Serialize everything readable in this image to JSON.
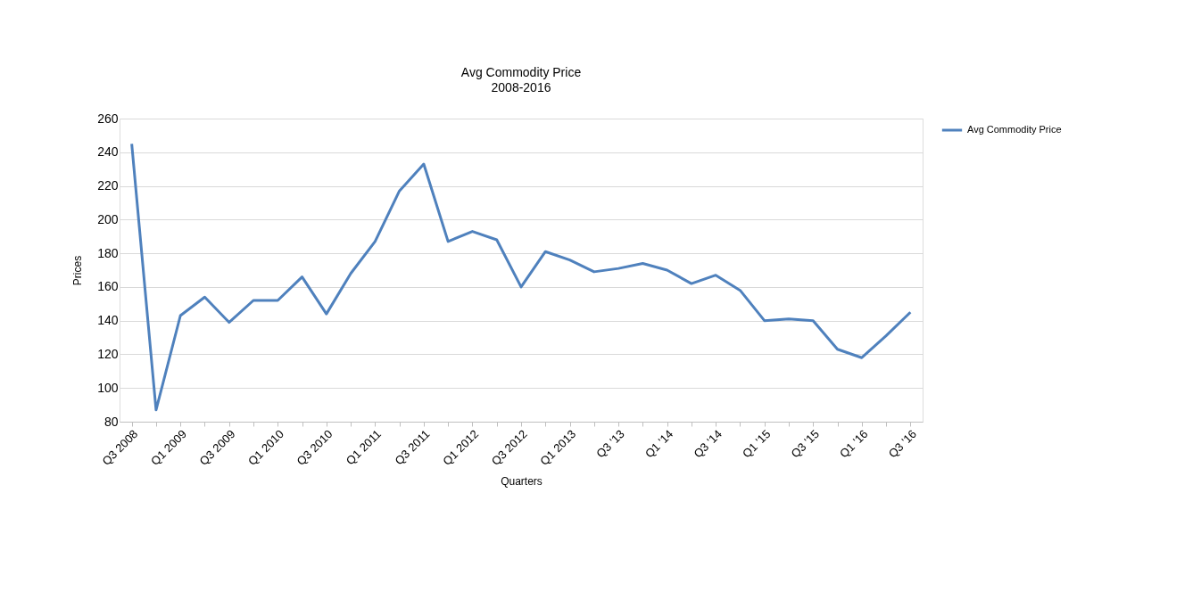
{
  "chart_data": {
    "type": "line",
    "title": "Avg Commodity Price",
    "subtitle": "2008-2016",
    "xlabel": "Quarters",
    "ylabel": "Prices",
    "categories": [
      "Q3 2008",
      null,
      "Q1 2009",
      null,
      "Q3 2009",
      null,
      "Q1 2010",
      null,
      "Q3 2010",
      null,
      "Q1 2011",
      null,
      "Q3 2011",
      null,
      "Q1 2012",
      null,
      "Q3 2012",
      null,
      "Q1 2013",
      null,
      "Q3 '13",
      null,
      "Q1 '14",
      null,
      "Q3 '14",
      null,
      "Q1 '15",
      null,
      "Q3 '15",
      null,
      "Q1 '16",
      null,
      "Q3 '16"
    ],
    "series": [
      {
        "name": "Avg Commodity Price",
        "color": "#4f81bd",
        "values": [
          245,
          87,
          143,
          154,
          139,
          152,
          152,
          166,
          144,
          168,
          187,
          217,
          233,
          187,
          193,
          188,
          160,
          181,
          176,
          169,
          171,
          174,
          170,
          162,
          167,
          158,
          140,
          141,
          140,
          123,
          118,
          131,
          145
        ]
      }
    ],
    "ylim": [
      80,
      260
    ],
    "yticks": [
      80,
      100,
      120,
      140,
      160,
      180,
      200,
      220,
      240,
      260
    ],
    "grid": "y",
    "legend": "right",
    "marker": "none",
    "line_style": "solid"
  }
}
